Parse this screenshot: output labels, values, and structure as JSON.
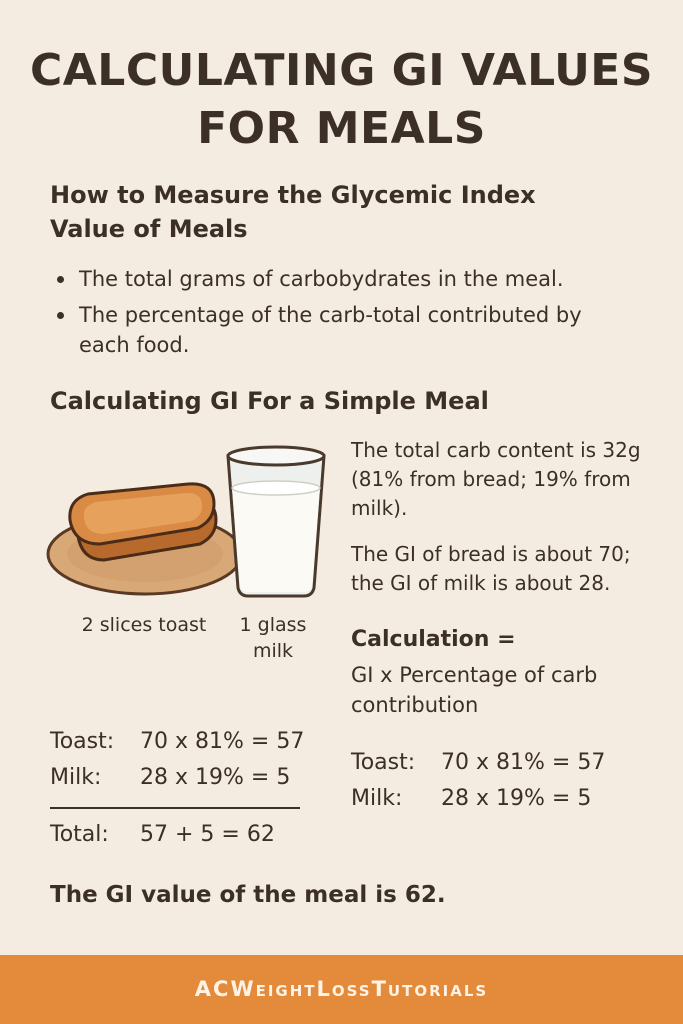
{
  "title": {
    "line1": "CALCULATING GI VALUES",
    "line2": "FOR MEALS"
  },
  "measure": {
    "heading_line1": "How to Measure the Glycemic Index",
    "heading_line2": "Value of Meals",
    "bullets": [
      "The total grams of carbobydrates in the meal.",
      "The percentage of the carb-total contributed by each food."
    ]
  },
  "simple": {
    "heading": "Calculating GI For a Simple Meal",
    "toast_caption": "2 slices toast",
    "milk_caption_line1": "1 glass",
    "milk_caption_line2": "milk",
    "carb_text": "The total carb content is 32g (81% from bread; 19% from milk).",
    "gi_text": "The GI of bread is about 70; the GI of milk is about 28.",
    "calc_label": "Calculation =",
    "calc_text": "GI x Percentage of carb contribution"
  },
  "equations": {
    "toast_label": "Toast:",
    "toast_expr": "70 x 81% = 57",
    "milk_label": "Milk:",
    "milk_expr": "28 x 19% = 5",
    "total_label": "Total:",
    "total_expr": "57 + 5 = 62"
  },
  "conclusion": "The GI value of the meal is 62.",
  "footer": "ACWeightLossTutorials",
  "colors": {
    "background": "#f5ece1",
    "text": "#3b2f27",
    "footer": "#e48a3b",
    "toast": "#d98a44",
    "plate": "#d9a877"
  }
}
